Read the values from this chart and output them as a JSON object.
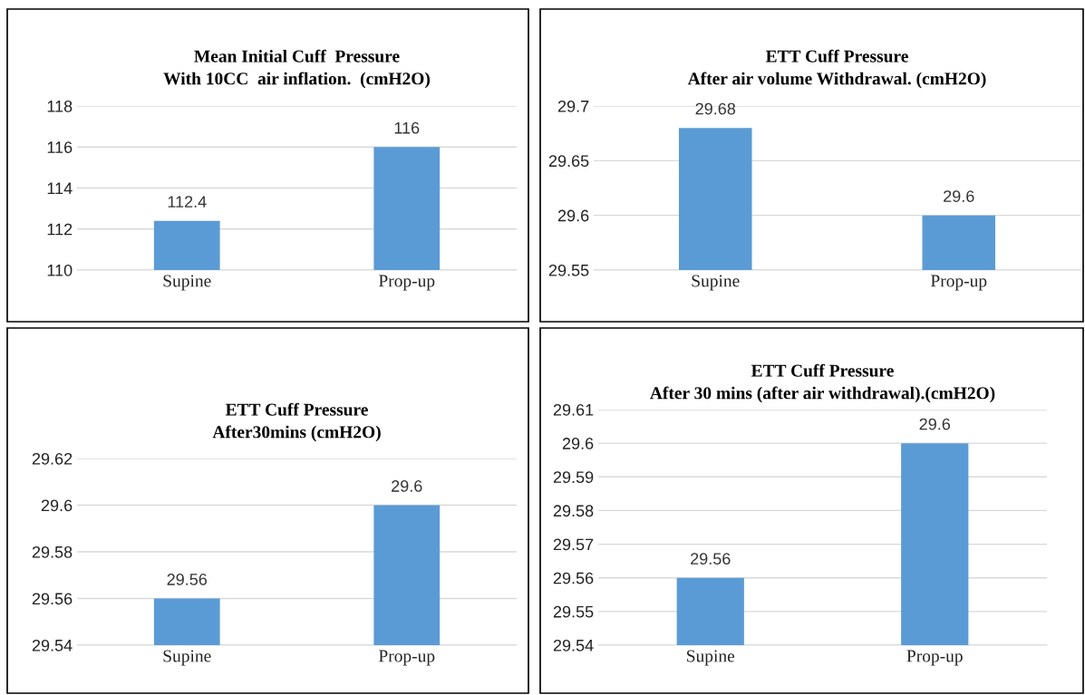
{
  "chart_data": [
    {
      "type": "bar",
      "title": "Mean Initial Cuff  Pressure\nWith 10CC  air inflation.  (cmH2O)",
      "categories": [
        "Supine",
        "Prop-up"
      ],
      "values": [
        112.4,
        116
      ],
      "color": "#5b9bd5",
      "ylim": [
        110,
        118
      ],
      "yticks": [
        110,
        112,
        114,
        116,
        118
      ],
      "grid": "y",
      "data_labels": true,
      "legend": false
    },
    {
      "type": "bar",
      "title": "ETT Cuff Pressure\nAfter air volume Withdrawal. (cmH2O)",
      "categories": [
        "Supine",
        "Prop-up"
      ],
      "values": [
        29.68,
        29.6
      ],
      "color": "#5b9bd5",
      "ylim": [
        29.55,
        29.7
      ],
      "yticks": [
        29.55,
        29.6,
        29.65,
        29.7
      ],
      "grid": "y",
      "data_labels": true,
      "legend": false
    },
    {
      "type": "bar",
      "title": "ETT Cuff Pressure\nAfter30mins (cmH2O)",
      "categories": [
        "Supine",
        "Prop-up"
      ],
      "values": [
        29.56,
        29.6
      ],
      "color": "#5b9bd5",
      "ylim": [
        29.54,
        29.62
      ],
      "yticks": [
        29.54,
        29.56,
        29.58,
        29.6,
        29.62
      ],
      "grid": "y",
      "data_labels": true,
      "legend": false
    },
    {
      "type": "bar",
      "title": "ETT Cuff Pressure\nAfter 30 mins (after air withdrawal).(cmH2O)",
      "categories": [
        "Supine",
        "Prop-up"
      ],
      "values": [
        29.56,
        29.6
      ],
      "color": "#5b9bd5",
      "ylim": [
        29.54,
        29.61
      ],
      "yticks": [
        29.54,
        29.55,
        29.56,
        29.57,
        29.58,
        29.59,
        29.6,
        29.61
      ],
      "grid": "y",
      "data_labels": true,
      "legend": false
    }
  ]
}
